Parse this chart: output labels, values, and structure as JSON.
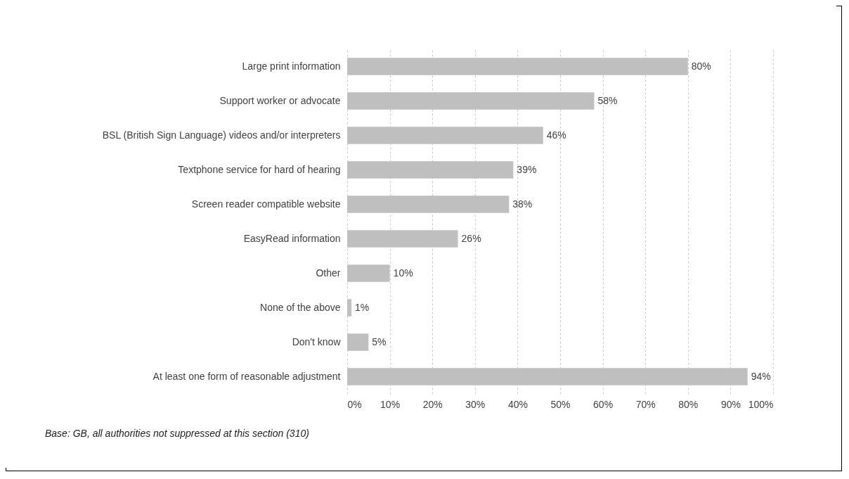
{
  "chart_data": {
    "type": "bar",
    "orientation": "horizontal",
    "categories": [
      "Large print information",
      "Support worker or advocate",
      "BSL (British Sign Language) videos and/or interpreters",
      "Textphone  service for hard of hearing",
      "Screen reader compatible website",
      "EasyRead information",
      "Other",
      "None of the above",
      "Don't know",
      "At least one form of reasonable adjustment"
    ],
    "values": [
      80,
      58,
      46,
      39,
      38,
      26,
      10,
      1,
      5,
      94
    ],
    "value_labels": [
      "80%",
      "58%",
      "46%",
      "39%",
      "38%",
      "26%",
      "10%",
      "1%",
      "5%",
      "94%"
    ],
    "color": "#bfbfbf",
    "xlim": [
      0,
      100
    ],
    "xticks": [
      {
        "value": 0,
        "label": "0%"
      },
      {
        "value": 10,
        "label": "10%"
      },
      {
        "value": 20,
        "label": "20%"
      },
      {
        "value": 30,
        "label": "30%"
      },
      {
        "value": 40,
        "label": "40%"
      },
      {
        "value": 50,
        "label": "50%"
      },
      {
        "value": 60,
        "label": "60%"
      },
      {
        "value": 70,
        "label": "70%"
      },
      {
        "value": 80,
        "label": "80%"
      },
      {
        "value": 90,
        "label": "90%"
      },
      {
        "value": 100,
        "label": "100%"
      }
    ],
    "grid": "x",
    "annotations": [
      "Base: GB, all authorities not suppressed at this section (310)"
    ]
  }
}
